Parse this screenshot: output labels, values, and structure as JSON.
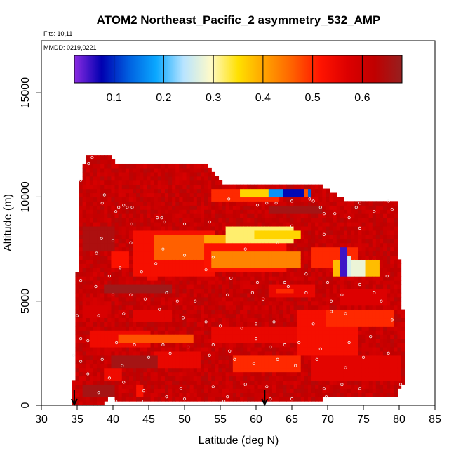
{
  "chart_data": {
    "type": "heatmap",
    "title": "ATOM2 Northeast_Pacific_2 asymmetry_532_AMP",
    "flights_label": "Flts: 10,11",
    "dates_label": "MMDD: 0219,0221",
    "xlabel": "Latitude (deg N)",
    "ylabel": "Altitude (m)",
    "xlim": [
      30,
      85
    ],
    "ylim": [
      0,
      17500
    ],
    "x_ticks": [
      30,
      35,
      40,
      45,
      50,
      55,
      60,
      65,
      70,
      75,
      80,
      85
    ],
    "y_ticks": [
      0,
      5000,
      10000,
      15000
    ],
    "colorbar": {
      "range": [
        0.02,
        0.68
      ],
      "ticks": [
        0.1,
        0.2,
        0.3,
        0.4,
        0.5,
        0.6
      ],
      "tick_labels": [
        "0.1",
        "0.2",
        "0.3",
        "0.4",
        "0.5",
        "0.6"
      ],
      "colors": [
        "#8b2be2",
        "#0000b0",
        "#0060e0",
        "#0aa8ff",
        "#b8e4ff",
        "#fffac8",
        "#ffe000",
        "#ffa000",
        "#ff6000",
        "#ff1400",
        "#dd0000",
        "#c00000",
        "#962020"
      ]
    },
    "arrows_lat": [
      34.6,
      61.2
    ],
    "envelope": [
      [
        34.5,
        0,
        1200
      ],
      [
        35.0,
        0,
        6300
      ],
      [
        35.5,
        0,
        10800
      ],
      [
        36.2,
        0,
        11900
      ],
      [
        38.5,
        0,
        11900
      ],
      [
        39.8,
        600,
        11900
      ],
      [
        40.3,
        300,
        11500
      ],
      [
        43.5,
        300,
        11500
      ],
      [
        53.0,
        300,
        11500
      ],
      [
        56.0,
        300,
        10500
      ],
      [
        68.0,
        300,
        10600
      ],
      [
        69.0,
        300,
        10500
      ],
      [
        70.5,
        500,
        10200
      ],
      [
        73.0,
        500,
        9800
      ],
      [
        79.5,
        500,
        9800
      ],
      [
        79.8,
        500,
        7000
      ],
      [
        80.2,
        1000,
        7000
      ],
      [
        80.5,
        1000,
        4500
      ]
    ],
    "background_value": 0.61,
    "features": [
      {
        "lat": [
          36,
          40
        ],
        "alt": [
          7500,
          8500
        ],
        "value": 0.65
      },
      {
        "lat": [
          40,
          42
        ],
        "alt": [
          6700,
          7300
        ],
        "value": 0.52
      },
      {
        "lat": [
          43,
          54
        ],
        "alt": [
          6200,
          8400
        ],
        "value": 0.53
      },
      {
        "lat": [
          46,
          56
        ],
        "alt": [
          7000,
          8200
        ],
        "value": 0.46
      },
      {
        "lat": [
          53,
          60
        ],
        "alt": [
          7900,
          8200
        ],
        "value": 0.4
      },
      {
        "lat": [
          53,
          64
        ],
        "alt": [
          6400,
          7800
        ],
        "value": 0.52
      },
      {
        "lat": [
          54,
          66
        ],
        "alt": [
          6700,
          7400
        ],
        "value": 0.43
      },
      {
        "lat": [
          56,
          65
        ],
        "alt": [
          7800,
          8600
        ],
        "value": 0.32
      },
      {
        "lat": [
          60,
          66
        ],
        "alt": [
          8000,
          8400
        ],
        "value": 0.36
      },
      {
        "lat": [
          54,
          63
        ],
        "alt": [
          9900,
          10300
        ],
        "value": 0.5
      },
      {
        "lat": [
          58,
          63
        ],
        "alt": [
          10000,
          10300
        ],
        "value": 0.36
      },
      {
        "lat": [
          62,
          66
        ],
        "alt": [
          9950,
          10300
        ],
        "value": 0.17
      },
      {
        "lat": [
          64,
          66.8
        ],
        "alt": [
          9950,
          10350
        ],
        "value": 0.08
      },
      {
        "lat": [
          66.8,
          67.3
        ],
        "alt": [
          9950,
          10350
        ],
        "value": 0.47
      },
      {
        "lat": [
          67.3,
          67.8
        ],
        "alt": [
          9950,
          10350
        ],
        "value": 0.13
      },
      {
        "lat": [
          68,
          74
        ],
        "alt": [
          6700,
          7500
        ],
        "value": 0.5
      },
      {
        "lat": [
          71,
          77
        ],
        "alt": [
          6300,
          6900
        ],
        "value": 0.38
      },
      {
        "lat": [
          71.8,
          72.6
        ],
        "alt": [
          6200,
          7600
        ],
        "value": 0.05
      },
      {
        "lat": [
          72.8,
          73.3
        ],
        "alt": [
          6200,
          7200
        ],
        "value": 0.26
      },
      {
        "lat": [
          73.3,
          75
        ],
        "alt": [
          6200,
          6900
        ],
        "value": 0.28
      },
      {
        "lat": [
          37,
          45
        ],
        "alt": [
          2800,
          3500
        ],
        "value": 0.54
      },
      {
        "lat": [
          41,
          51
        ],
        "alt": [
          3000,
          3400
        ],
        "value": 0.47
      },
      {
        "lat": [
          43,
          48
        ],
        "alt": [
          4000,
          4500
        ],
        "value": 0.56
      },
      {
        "lat": [
          46,
          52
        ],
        "alt": [
          1800,
          2600
        ],
        "value": 0.55
      },
      {
        "lat": [
          54,
          67
        ],
        "alt": [
          3000,
          3800
        ],
        "value": 0.55
      },
      {
        "lat": [
          57,
          66
        ],
        "alt": [
          1600,
          2400
        ],
        "value": 0.5
      },
      {
        "lat": [
          66,
          74
        ],
        "alt": [
          2400,
          4500
        ],
        "value": 0.53
      },
      {
        "lat": [
          70,
          79
        ],
        "alt": [
          3800,
          4600
        ],
        "value": 0.5
      },
      {
        "lat": [
          68,
          80
        ],
        "alt": [
          1200,
          2400
        ],
        "value": 0.56
      },
      {
        "lat": [
          62,
          68
        ],
        "alt": [
          5200,
          5800
        ],
        "value": 0.55
      },
      {
        "lat": [
          72,
          78
        ],
        "alt": [
          4800,
          5600
        ],
        "value": 0.57
      },
      {
        "lat": [
          39,
          41
        ],
        "alt": [
          1200,
          1800
        ],
        "value": 0.54
      },
      {
        "lat": [
          43.5,
          44.2
        ],
        "alt": [
          500,
          900
        ],
        "value": 0.52
      },
      {
        "lat": [
          45,
          46
        ],
        "alt": [
          6000,
          6200
        ],
        "value": 0.54
      },
      {
        "lat": [
          40,
          46
        ],
        "alt": [
          1900,
          2400
        ],
        "value": 0.66
      },
      {
        "lat": [
          36,
          40
        ],
        "alt": [
          400,
          1000
        ],
        "value": 0.66
      },
      {
        "lat": [
          39,
          48
        ],
        "alt": [
          5400,
          5800
        ],
        "value": 0.67
      },
      {
        "lat": [
          62,
          69
        ],
        "alt": [
          9200,
          9600
        ],
        "value": 0.66
      },
      {
        "lat": [
          36,
          39
        ],
        "alt": [
          4200,
          4800
        ],
        "value": 0.58
      },
      {
        "lat": [
          63,
          65
        ],
        "alt": [
          5400,
          5600
        ],
        "value": 0.5
      }
    ],
    "sample_points": [
      [
        35.5,
        10800
      ],
      [
        37.1,
        11900
      ],
      [
        36.6,
        11600
      ],
      [
        38.8,
        10100
      ],
      [
        38.5,
        9700
      ],
      [
        40.8,
        9500
      ],
      [
        41.5,
        9600
      ],
      [
        42.0,
        9500
      ],
      [
        42.7,
        9500
      ],
      [
        40.4,
        9300
      ],
      [
        42.6,
        8700
      ],
      [
        46.2,
        9000
      ],
      [
        46.8,
        9000
      ],
      [
        47.2,
        8800
      ],
      [
        50.0,
        8700
      ],
      [
        53.5,
        8800
      ],
      [
        56.2,
        9900
      ],
      [
        60.2,
        9600
      ],
      [
        61.5,
        9700
      ],
      [
        62.8,
        9700
      ],
      [
        65.0,
        9800
      ],
      [
        67.5,
        9900
      ],
      [
        68.0,
        9800
      ],
      [
        69.0,
        9500
      ],
      [
        74.0,
        9500
      ],
      [
        74.5,
        9700
      ],
      [
        76.5,
        9300
      ],
      [
        78.5,
        9800
      ],
      [
        79.0,
        9400
      ],
      [
        73.0,
        9000
      ],
      [
        71.0,
        9200
      ],
      [
        69.5,
        9200
      ],
      [
        74.5,
        8500
      ],
      [
        69.5,
        8200
      ],
      [
        65.0,
        8600
      ],
      [
        63.0,
        7800
      ],
      [
        58.5,
        7500
      ],
      [
        54.0,
        7100
      ],
      [
        50.0,
        7200
      ],
      [
        47.0,
        7500
      ],
      [
        42.5,
        7800
      ],
      [
        40.0,
        7900
      ],
      [
        38.4,
        8000
      ],
      [
        37.7,
        7300
      ],
      [
        41.0,
        6600
      ],
      [
        39.5,
        6200
      ],
      [
        44.0,
        6400
      ],
      [
        46.0,
        6800
      ],
      [
        53.0,
        6500
      ],
      [
        56.5,
        6100
      ],
      [
        60.2,
        5900
      ],
      [
        64.0,
        5900
      ],
      [
        67.0,
        6300
      ],
      [
        70.0,
        5900
      ],
      [
        74.5,
        5800
      ],
      [
        78.3,
        6200
      ],
      [
        35.5,
        6000
      ],
      [
        37.6,
        5700
      ],
      [
        40.0,
        5300
      ],
      [
        42.5,
        5300
      ],
      [
        44.5,
        5100
      ],
      [
        47.5,
        5400
      ],
      [
        49.0,
        5000
      ],
      [
        51.5,
        5000
      ],
      [
        56.0,
        5300
      ],
      [
        59.5,
        5400
      ],
      [
        61.0,
        5100
      ],
      [
        64.5,
        5700
      ],
      [
        67.0,
        5400
      ],
      [
        70.5,
        5000
      ],
      [
        72.0,
        5300
      ],
      [
        76.5,
        5400
      ],
      [
        77.5,
        5000
      ],
      [
        35.0,
        4300
      ],
      [
        38.0,
        4300
      ],
      [
        41.5,
        4400
      ],
      [
        46.5,
        4600
      ],
      [
        49.8,
        4200
      ],
      [
        53.0,
        4000
      ],
      [
        55.0,
        3800
      ],
      [
        58.0,
        3700
      ],
      [
        60.0,
        3900
      ],
      [
        62.5,
        4000
      ],
      [
        68.0,
        3900
      ],
      [
        70.5,
        4500
      ],
      [
        72.5,
        4400
      ],
      [
        79.0,
        4100
      ],
      [
        35.5,
        3200
      ],
      [
        36.5,
        3100
      ],
      [
        40.5,
        3000
      ],
      [
        43.0,
        2900
      ],
      [
        47.0,
        2900
      ],
      [
        50.5,
        2800
      ],
      [
        54.0,
        2900
      ],
      [
        56.3,
        2600
      ],
      [
        60.0,
        3200
      ],
      [
        62.0,
        2800
      ],
      [
        64.0,
        2900
      ],
      [
        66.0,
        3000
      ],
      [
        69.0,
        2700
      ],
      [
        73.0,
        3000
      ],
      [
        76.0,
        3300
      ],
      [
        78.5,
        2500
      ],
      [
        34.5,
        2400
      ],
      [
        35.5,
        2100
      ],
      [
        38.5,
        2200
      ],
      [
        41.3,
        1900
      ],
      [
        45.0,
        2300
      ],
      [
        48.0,
        2500
      ],
      [
        53.5,
        2400
      ],
      [
        57.0,
        2200
      ],
      [
        59.7,
        2000
      ],
      [
        63.0,
        2200
      ],
      [
        65.5,
        1900
      ],
      [
        68.5,
        2200
      ],
      [
        72.5,
        1800
      ],
      [
        75.0,
        2300
      ],
      [
        80.2,
        1000
      ],
      [
        36.5,
        1500
      ],
      [
        39.5,
        1300
      ],
      [
        41.5,
        1100
      ],
      [
        44.3,
        700
      ],
      [
        49.5,
        800
      ],
      [
        54.0,
        900
      ],
      [
        58.5,
        1000
      ],
      [
        61.5,
        900
      ],
      [
        69.5,
        800
      ],
      [
        72.0,
        1000
      ],
      [
        74.5,
        800
      ],
      [
        40.4,
        200
      ],
      [
        44.3,
        200
      ],
      [
        50.0,
        300
      ],
      [
        56.0,
        400
      ],
      [
        65.0,
        300
      ],
      [
        69.8,
        400
      ],
      [
        38.0,
        600
      ],
      [
        47.5,
        400
      ],
      [
        55.5,
        200
      ],
      [
        62.0,
        300
      ]
    ]
  }
}
